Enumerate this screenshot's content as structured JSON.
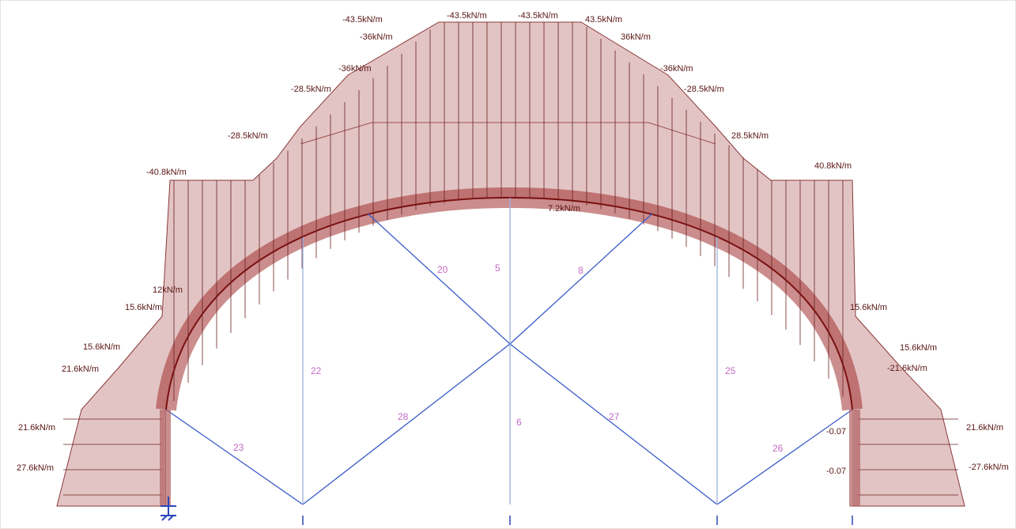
{
  "load_labels": [
    "-43.5kN/m",
    "-43.5kN/m",
    "-43.5kN/m",
    "43.5kN/m",
    "-36kN/m",
    "36kN/m",
    "-36kN/m",
    "-36kN/m",
    "-28.5kN/m",
    "-28.5kN/m",
    "-28.5kN/m",
    "28.5kN/m",
    "-40.8kN/m",
    "40.8kN/m",
    "7.2kN/m",
    "12kN/m",
    "15.6kN/m",
    "15.6kN/m",
    "15.6kN/m",
    "15.6kN/m",
    "21.6kN/m",
    "-21.6kN/m",
    "21.6kN/m",
    "21.6kN/m",
    "27.6kN/m",
    "-27.6kN/m",
    "-0.07",
    "-0.07"
  ],
  "member_labels": [
    "20",
    "5",
    "8",
    "22",
    "25",
    "28",
    "6",
    "27",
    "23",
    "26"
  ]
}
